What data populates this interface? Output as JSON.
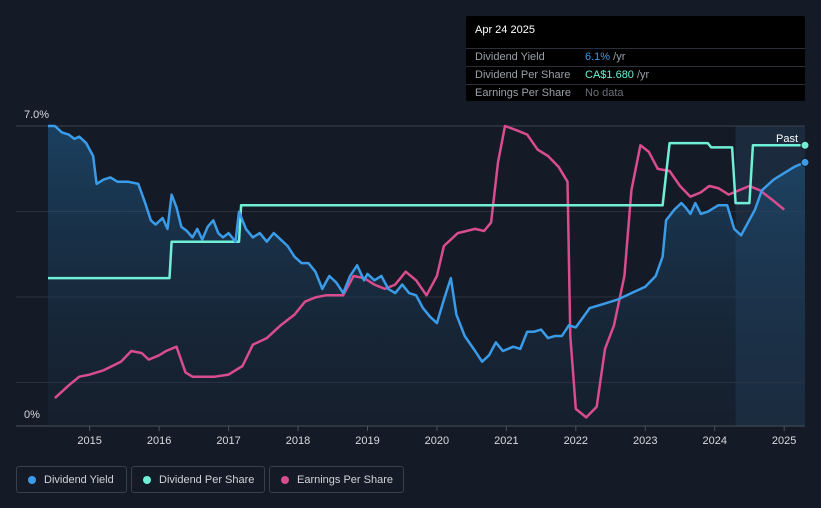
{
  "tooltip": {
    "date": "Apr 24 2025",
    "rows": [
      {
        "label": "Dividend Yield",
        "value": "6.1%",
        "unit": " /yr",
        "color": "#3a9be8"
      },
      {
        "label": "Dividend Per Share",
        "value": "CA$1.680",
        "unit": " /yr",
        "color": "#6ff0d6"
      },
      {
        "label": "Earnings Per Share",
        "value": "No data",
        "unit": "",
        "color": "#6b7079"
      }
    ]
  },
  "legend": [
    {
      "label": "Dividend Yield",
      "color": "#3a9be8"
    },
    {
      "label": "Dividend Per Share",
      "color": "#6ff0d6"
    },
    {
      "label": "Earnings Per Share",
      "color": "#d94c8e"
    }
  ],
  "chart_data": {
    "type": "line",
    "title": "",
    "past_label": "Past",
    "y_label_top": "7.0%",
    "y_label_bottom": "0%",
    "ylim": [
      0,
      7.0
    ],
    "xlim": [
      2014.4,
      2025.3
    ],
    "x_ticks": [
      2015,
      2016,
      2017,
      2018,
      2019,
      2020,
      2021,
      2022,
      2023,
      2024,
      2025
    ],
    "x_tick_labels": [
      "2015",
      "2016",
      "2017",
      "2018",
      "2019",
      "2020",
      "2021",
      "2022",
      "2023",
      "2024",
      "2025"
    ],
    "past_start": 2024.3,
    "colors": {
      "yield": "#3a9be8",
      "dps": "#6ff0d6",
      "eps": "#d94c8e"
    },
    "series": [
      {
        "name": "Dividend Yield",
        "key": "yield",
        "unit": "%",
        "points": [
          [
            2014.4,
            7.0
          ],
          [
            2014.5,
            7.0
          ],
          [
            2014.6,
            6.85
          ],
          [
            2014.7,
            6.8
          ],
          [
            2014.78,
            6.7
          ],
          [
            2014.85,
            6.75
          ],
          [
            2014.95,
            6.6
          ],
          [
            2015.05,
            6.3
          ],
          [
            2015.1,
            5.65
          ],
          [
            2015.2,
            5.75
          ],
          [
            2015.3,
            5.8
          ],
          [
            2015.4,
            5.7
          ],
          [
            2015.55,
            5.7
          ],
          [
            2015.7,
            5.65
          ],
          [
            2015.8,
            5.2
          ],
          [
            2015.88,
            4.8
          ],
          [
            2015.95,
            4.7
          ],
          [
            2016.05,
            4.85
          ],
          [
            2016.12,
            4.6
          ],
          [
            2016.18,
            5.4
          ],
          [
            2016.25,
            5.1
          ],
          [
            2016.32,
            4.65
          ],
          [
            2016.4,
            4.55
          ],
          [
            2016.48,
            4.4
          ],
          [
            2016.55,
            4.6
          ],
          [
            2016.62,
            4.35
          ],
          [
            2016.7,
            4.65
          ],
          [
            2016.78,
            4.8
          ],
          [
            2016.85,
            4.5
          ],
          [
            2016.92,
            4.4
          ],
          [
            2017.0,
            4.5
          ],
          [
            2017.1,
            4.3
          ],
          [
            2017.15,
            5.0
          ],
          [
            2017.25,
            4.6
          ],
          [
            2017.35,
            4.4
          ],
          [
            2017.45,
            4.5
          ],
          [
            2017.55,
            4.3
          ],
          [
            2017.65,
            4.5
          ],
          [
            2017.75,
            4.35
          ],
          [
            2017.85,
            4.2
          ],
          [
            2017.95,
            3.95
          ],
          [
            2018.05,
            3.8
          ],
          [
            2018.15,
            3.8
          ],
          [
            2018.25,
            3.6
          ],
          [
            2018.35,
            3.2
          ],
          [
            2018.45,
            3.5
          ],
          [
            2018.55,
            3.35
          ],
          [
            2018.65,
            3.1
          ],
          [
            2018.75,
            3.5
          ],
          [
            2018.85,
            3.75
          ],
          [
            2018.95,
            3.4
          ],
          [
            2019.0,
            3.55
          ],
          [
            2019.1,
            3.4
          ],
          [
            2019.2,
            3.5
          ],
          [
            2019.3,
            3.2
          ],
          [
            2019.4,
            3.1
          ],
          [
            2019.5,
            3.3
          ],
          [
            2019.6,
            3.1
          ],
          [
            2019.7,
            3.05
          ],
          [
            2019.8,
            2.75
          ],
          [
            2019.9,
            2.55
          ],
          [
            2020.0,
            2.4
          ],
          [
            2020.1,
            2.95
          ],
          [
            2020.2,
            3.45
          ],
          [
            2020.28,
            2.6
          ],
          [
            2020.4,
            2.1
          ],
          [
            2020.55,
            1.75
          ],
          [
            2020.65,
            1.5
          ],
          [
            2020.75,
            1.65
          ],
          [
            2020.85,
            1.95
          ],
          [
            2020.95,
            1.75
          ],
          [
            2021.1,
            1.85
          ],
          [
            2021.2,
            1.8
          ],
          [
            2021.3,
            2.2
          ],
          [
            2021.4,
            2.2
          ],
          [
            2021.5,
            2.25
          ],
          [
            2021.6,
            2.05
          ],
          [
            2021.7,
            2.1
          ],
          [
            2021.8,
            2.1
          ],
          [
            2021.9,
            2.35
          ],
          [
            2022.0,
            2.3
          ],
          [
            2022.2,
            2.75
          ],
          [
            2022.4,
            2.85
          ],
          [
            2022.6,
            2.95
          ],
          [
            2022.8,
            3.1
          ],
          [
            2023.0,
            3.25
          ],
          [
            2023.15,
            3.5
          ],
          [
            2023.25,
            3.95
          ],
          [
            2023.3,
            4.8
          ],
          [
            2023.42,
            5.05
          ],
          [
            2023.52,
            5.2
          ],
          [
            2023.58,
            5.1
          ],
          [
            2023.65,
            4.95
          ],
          [
            2023.72,
            5.2
          ],
          [
            2023.8,
            4.95
          ],
          [
            2023.9,
            5.0
          ],
          [
            2024.05,
            5.15
          ],
          [
            2024.18,
            5.15
          ],
          [
            2024.28,
            4.6
          ],
          [
            2024.38,
            4.45
          ],
          [
            2024.48,
            4.75
          ],
          [
            2024.58,
            5.05
          ],
          [
            2024.68,
            5.5
          ],
          [
            2024.85,
            5.75
          ],
          [
            2025.0,
            5.9
          ],
          [
            2025.15,
            6.05
          ],
          [
            2025.3,
            6.15
          ]
        ]
      },
      {
        "name": "Dividend Per Share",
        "key": "dps",
        "unit": "CA$",
        "points": [
          [
            2014.4,
            3.45
          ],
          [
            2016.15,
            3.45
          ],
          [
            2016.18,
            4.3
          ],
          [
            2017.15,
            4.3
          ],
          [
            2017.18,
            5.15
          ],
          [
            2023.25,
            5.15
          ],
          [
            2023.35,
            6.6
          ],
          [
            2023.9,
            6.6
          ],
          [
            2023.95,
            6.5
          ],
          [
            2024.25,
            6.5
          ],
          [
            2024.3,
            5.2
          ],
          [
            2024.5,
            5.2
          ],
          [
            2024.55,
            6.55
          ],
          [
            2025.3,
            6.55
          ]
        ]
      },
      {
        "name": "Earnings Per Share",
        "key": "eps",
        "unit": "CA$",
        "points": [
          [
            2014.5,
            0.65
          ],
          [
            2014.7,
            0.95
          ],
          [
            2014.85,
            1.15
          ],
          [
            2015.0,
            1.2
          ],
          [
            2015.2,
            1.3
          ],
          [
            2015.45,
            1.5
          ],
          [
            2015.6,
            1.75
          ],
          [
            2015.75,
            1.7
          ],
          [
            2015.85,
            1.55
          ],
          [
            2016.0,
            1.65
          ],
          [
            2016.1,
            1.75
          ],
          [
            2016.25,
            1.85
          ],
          [
            2016.38,
            1.25
          ],
          [
            2016.48,
            1.15
          ],
          [
            2016.6,
            1.15
          ],
          [
            2016.8,
            1.15
          ],
          [
            2017.0,
            1.2
          ],
          [
            2017.2,
            1.4
          ],
          [
            2017.35,
            1.9
          ],
          [
            2017.55,
            2.05
          ],
          [
            2017.75,
            2.35
          ],
          [
            2017.95,
            2.6
          ],
          [
            2018.1,
            2.9
          ],
          [
            2018.25,
            3.0
          ],
          [
            2018.4,
            3.05
          ],
          [
            2018.65,
            3.05
          ],
          [
            2018.8,
            3.5
          ],
          [
            2018.95,
            3.45
          ],
          [
            2019.1,
            3.3
          ],
          [
            2019.25,
            3.2
          ],
          [
            2019.4,
            3.3
          ],
          [
            2019.55,
            3.6
          ],
          [
            2019.7,
            3.4
          ],
          [
            2019.85,
            3.05
          ],
          [
            2020.0,
            3.5
          ],
          [
            2020.1,
            4.2
          ],
          [
            2020.3,
            4.5
          ],
          [
            2020.55,
            4.6
          ],
          [
            2020.68,
            4.55
          ],
          [
            2020.78,
            4.75
          ],
          [
            2020.88,
            6.15
          ],
          [
            2020.98,
            7.0
          ],
          [
            2021.15,
            6.9
          ],
          [
            2021.3,
            6.8
          ],
          [
            2021.45,
            6.45
          ],
          [
            2021.6,
            6.3
          ],
          [
            2021.75,
            6.05
          ],
          [
            2021.88,
            5.7
          ],
          [
            2021.92,
            2.1
          ],
          [
            2022.0,
            0.4
          ],
          [
            2022.15,
            0.2
          ],
          [
            2022.3,
            0.45
          ],
          [
            2022.42,
            1.8
          ],
          [
            2022.55,
            2.35
          ],
          [
            2022.7,
            3.5
          ],
          [
            2022.8,
            5.5
          ],
          [
            2022.93,
            6.55
          ],
          [
            2023.05,
            6.4
          ],
          [
            2023.18,
            6.0
          ],
          [
            2023.35,
            5.95
          ],
          [
            2023.5,
            5.6
          ],
          [
            2023.65,
            5.35
          ],
          [
            2023.8,
            5.45
          ],
          [
            2023.92,
            5.6
          ],
          [
            2024.05,
            5.55
          ],
          [
            2024.2,
            5.4
          ],
          [
            2024.35,
            5.5
          ],
          [
            2024.5,
            5.6
          ],
          [
            2024.65,
            5.5
          ],
          [
            2024.85,
            5.25
          ],
          [
            2025.0,
            5.05
          ]
        ]
      }
    ]
  }
}
